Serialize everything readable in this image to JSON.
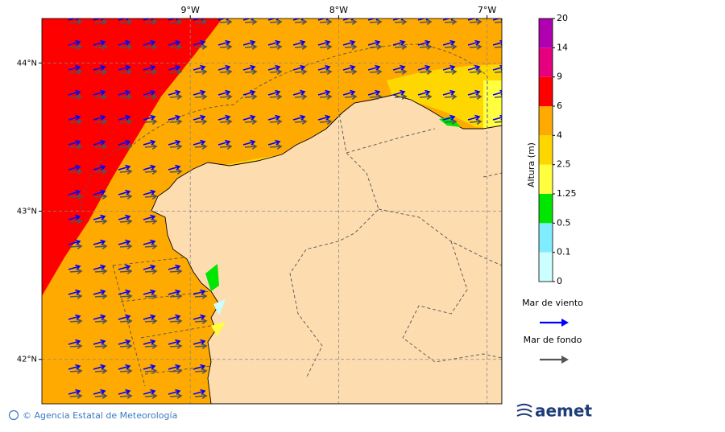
{
  "map": {
    "lon_ticks": [
      {
        "value": -9,
        "label": "9°W"
      },
      {
        "value": -8,
        "label": "8°W"
      },
      {
        "value": -7,
        "label": "7°W"
      }
    ],
    "lat_ticks": [
      {
        "value": 44,
        "label": "44°N"
      },
      {
        "value": 43,
        "label": "43°N"
      },
      {
        "value": 42,
        "label": "42°N"
      }
    ],
    "lon_range": [
      -10,
      -6.9
    ],
    "lat_range": [
      41.7,
      44.3
    ]
  },
  "colorbar": {
    "label": "Altura (m)",
    "ticks": [
      0,
      0.1,
      0.5,
      1.25,
      2.5,
      4,
      6,
      9,
      14,
      20
    ],
    "colors": [
      "#ccffff",
      "#80ecff",
      "#00e600",
      "#ffff40",
      "#ffd700",
      "#ffaa00",
      "#ff0000",
      "#e6007e",
      "#b000b0"
    ]
  },
  "legend": [
    {
      "name": "Mar de viento",
      "color": "#0000ff"
    },
    {
      "name": "Mar de fondo",
      "color": "#555555"
    }
  ],
  "footer": "© Agencia Estatal de Meteorología",
  "logo": "aemet"
}
